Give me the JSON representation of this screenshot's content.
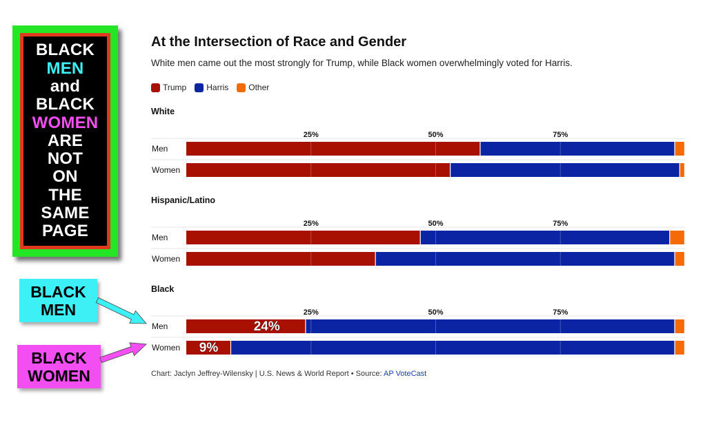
{
  "poster": {
    "lines": [
      {
        "text": "BLACK",
        "color": "#ffffff"
      },
      {
        "text": "MEN",
        "color": "#3df0f5"
      },
      {
        "text": "and",
        "color": "#ffffff"
      },
      {
        "text": "BLACK",
        "color": "#ffffff"
      },
      {
        "text": "WOMEN",
        "color": "#f24ef2"
      },
      {
        "text": "ARE",
        "color": "#ffffff"
      },
      {
        "text": "NOT",
        "color": "#ffffff"
      },
      {
        "text": "ON",
        "color": "#ffffff"
      },
      {
        "text": "THE",
        "color": "#ffffff"
      },
      {
        "text": "SAME",
        "color": "#ffffff"
      },
      {
        "text": "PAGE",
        "color": "#ffffff"
      }
    ]
  },
  "callouts": {
    "men": [
      "BLACK",
      "MEN"
    ],
    "women": [
      "BLACK",
      "WOMEN"
    ]
  },
  "chart": {
    "title": "At the Intersection of Race and Gender",
    "subtitle": "White men came out the most strongly for Trump, while Black women overwhelmingly voted for Harris.",
    "source_prefix": "Chart: Jaclyn Jeffrey-Wilensky | U.S. News & World Report • Source: ",
    "source_link": "AP VoteCast"
  },
  "chart_data": {
    "type": "bar",
    "orientation": "horizontal-stacked",
    "title": "At the Intersection of Race and Gender",
    "subtitle": "White men came out the most strongly for Trump, while Black women overwhelmingly voted for Harris.",
    "legend": [
      {
        "name": "Trump",
        "color": "#a81002"
      },
      {
        "name": "Harris",
        "color": "#0a24a3"
      },
      {
        "name": "Other",
        "color": "#f46a09"
      }
    ],
    "ticks": [
      "25%",
      "50%",
      "75%"
    ],
    "tick_values": [
      25,
      50,
      75
    ],
    "xlim": [
      0,
      100
    ],
    "groups": [
      {
        "name": "White",
        "rows": [
          {
            "label": "Men",
            "values": [
              59,
              39,
              2
            ]
          },
          {
            "label": "Women",
            "values": [
              53,
              46,
              1
            ]
          }
        ]
      },
      {
        "name": "Hispanic/Latino",
        "rows": [
          {
            "label": "Men",
            "values": [
              47,
              50,
              3
            ]
          },
          {
            "label": "Women",
            "values": [
              38,
              60,
              2
            ]
          }
        ]
      },
      {
        "name": "Black",
        "rows": [
          {
            "label": "Men",
            "values": [
              24,
              74,
              2
            ],
            "annotation": "24%"
          },
          {
            "label": "Women",
            "values": [
              9,
              89,
              2
            ],
            "annotation": "9%"
          }
        ]
      }
    ]
  }
}
